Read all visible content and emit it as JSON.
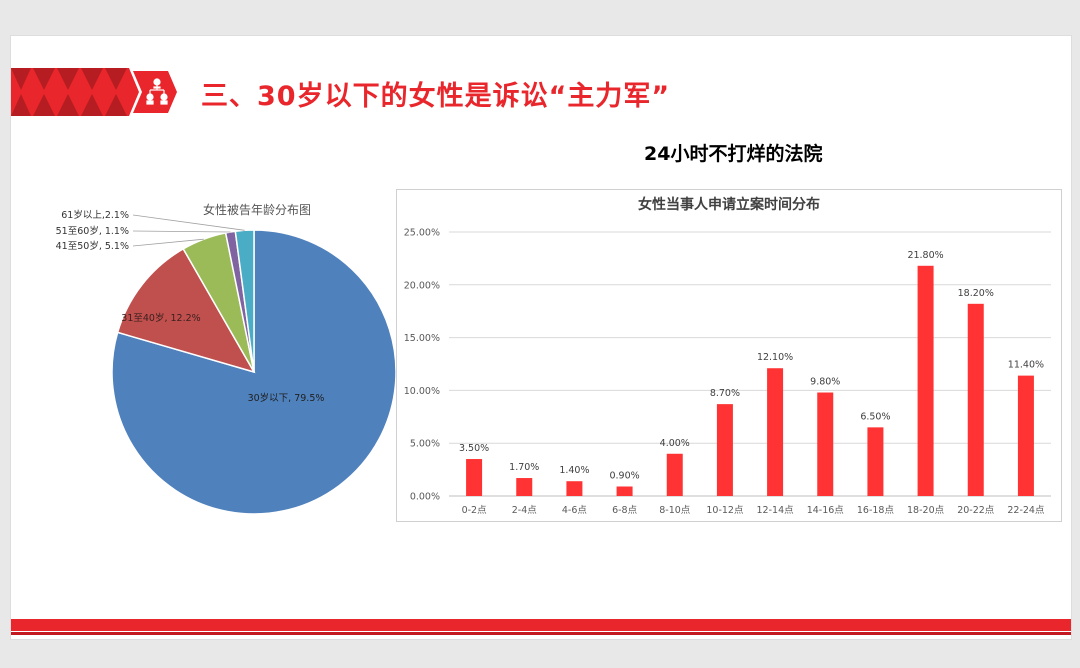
{
  "slide": {
    "title": "三、30岁以下的女性是诉讼“主力军”",
    "subtitle": "24小时不打烊的法院",
    "colors": {
      "accent": "#e8262b",
      "accent_dark": "#b51d22"
    },
    "banner_icon": "people-network-icon"
  },
  "chart_data": [
    {
      "type": "pie",
      "title": "女性被告年龄分布图",
      "labels": [
        "30岁以下",
        "31至40岁",
        "41至50岁",
        "51至60岁",
        "61岁以上"
      ],
      "values": [
        79.5,
        12.2,
        5.1,
        1.1,
        2.1
      ],
      "display_labels": [
        "30岁以下, 79.5%",
        "31至40岁, 12.2%",
        "41至50岁, 5.1%",
        "51至60岁, 1.1%",
        "61岁以上,2.1%"
      ],
      "colors": [
        "#4f81bd",
        "#c0504d",
        "#9bbb59",
        "#8064a2",
        "#4bacc6"
      ],
      "unit": "%"
    },
    {
      "type": "bar",
      "title": "女性当事人申请立案时间分布",
      "categories": [
        "0-2点",
        "2-4点",
        "4-6点",
        "6-8点",
        "8-10点",
        "10-12点",
        "12-14点",
        "14-16点",
        "16-18点",
        "18-20点",
        "20-22点",
        "22-24点"
      ],
      "values": [
        3.5,
        1.7,
        1.4,
        0.9,
        4.0,
        8.7,
        12.1,
        9.8,
        6.5,
        21.8,
        18.2,
        11.4
      ],
      "data_labels": [
        "3.50%",
        "1.70%",
        "1.40%",
        "0.90%",
        "4.00%",
        "8.70%",
        "12.10%",
        "9.80%",
        "6.50%",
        "21.80%",
        "18.20%",
        "11.40%"
      ],
      "y_ticks": [
        "0.00%",
        "5.00%",
        "10.00%",
        "15.00%",
        "20.00%",
        "25.00%"
      ],
      "ylim": [
        0,
        25
      ],
      "grid": true,
      "bar_color": "#ff3333"
    }
  ]
}
